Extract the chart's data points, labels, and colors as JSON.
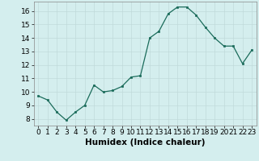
{
  "x": [
    0,
    1,
    2,
    3,
    4,
    5,
    6,
    7,
    8,
    9,
    10,
    11,
    12,
    13,
    14,
    15,
    16,
    17,
    18,
    19,
    20,
    21,
    22,
    23
  ],
  "y": [
    9.7,
    9.4,
    8.5,
    7.9,
    8.5,
    9.0,
    10.5,
    10.0,
    10.1,
    10.4,
    11.1,
    11.2,
    14.0,
    14.5,
    15.8,
    16.3,
    16.3,
    15.7,
    14.8,
    14.0,
    13.4,
    13.4,
    12.1,
    13.1
  ],
  "line_color": "#1a6b5a",
  "marker_color": "#1a6b5a",
  "bg_color": "#d4eeee",
  "grid_color": "#c0dada",
  "xlabel": "Humidex (Indice chaleur)",
  "xlabel_fontsize": 7.5,
  "tick_fontsize": 6.5,
  "ylim": [
    7.5,
    16.7
  ],
  "xlim": [
    -0.5,
    23.5
  ],
  "yticks": [
    8,
    9,
    10,
    11,
    12,
    13,
    14,
    15,
    16
  ],
  "xticks": [
    0,
    1,
    2,
    3,
    4,
    5,
    6,
    7,
    8,
    9,
    10,
    11,
    12,
    13,
    14,
    15,
    16,
    17,
    18,
    19,
    20,
    21,
    22,
    23
  ]
}
